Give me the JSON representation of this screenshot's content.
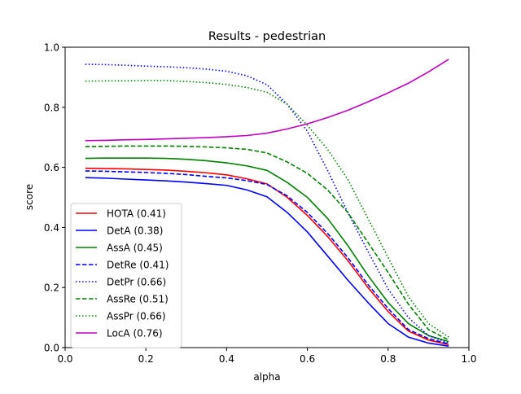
{
  "chart_data": {
    "type": "line",
    "title": "Results - pedestrian",
    "xlabel": "alpha",
    "ylabel": "score",
    "xlim": [
      0.0,
      1.0
    ],
    "ylim": [
      0.0,
      1.0
    ],
    "xticks": [
      "0.0",
      "0.2",
      "0.4",
      "0.6",
      "0.8",
      "1.0"
    ],
    "yticks": [
      "0.0",
      "0.2",
      "0.4",
      "0.6",
      "0.8",
      "1.0"
    ],
    "grid": false,
    "legend_position": "lower-left",
    "x": [
      0.05,
      0.1,
      0.15,
      0.2,
      0.25,
      0.3,
      0.35,
      0.4,
      0.45,
      0.5,
      0.55,
      0.6,
      0.65,
      0.7,
      0.75,
      0.8,
      0.85,
      0.9,
      0.95
    ],
    "series": [
      {
        "name": "HOTA (0.41)",
        "color": "#ff0000",
        "style": "solid",
        "values": [
          0.597,
          0.596,
          0.595,
          0.593,
          0.591,
          0.587,
          0.582,
          0.575,
          0.562,
          0.545,
          0.5,
          0.44,
          0.37,
          0.29,
          0.2,
          0.12,
          0.055,
          0.025,
          0.01
        ]
      },
      {
        "name": "DetA (0.38)",
        "color": "#0000ff",
        "style": "solid",
        "values": [
          0.566,
          0.564,
          0.561,
          0.558,
          0.555,
          0.551,
          0.546,
          0.54,
          0.525,
          0.502,
          0.45,
          0.385,
          0.305,
          0.225,
          0.15,
          0.08,
          0.035,
          0.015,
          0.005
        ]
      },
      {
        "name": "AssA (0.45)",
        "color": "#008000",
        "style": "solid",
        "values": [
          0.63,
          0.631,
          0.631,
          0.631,
          0.63,
          0.627,
          0.622,
          0.615,
          0.605,
          0.59,
          0.55,
          0.5,
          0.43,
          0.34,
          0.24,
          0.15,
          0.08,
          0.04,
          0.02
        ]
      },
      {
        "name": "DetRe (0.41)",
        "color": "#0000ff",
        "style": "dashed",
        "values": [
          0.588,
          0.587,
          0.585,
          0.583,
          0.58,
          0.576,
          0.57,
          0.565,
          0.556,
          0.543,
          0.505,
          0.45,
          0.38,
          0.3,
          0.21,
          0.13,
          0.06,
          0.03,
          0.012
        ]
      },
      {
        "name": "DetPr (0.66)",
        "color": "#0000ff",
        "style": "dotted",
        "values": [
          0.943,
          0.942,
          0.94,
          0.937,
          0.935,
          0.932,
          0.927,
          0.92,
          0.905,
          0.875,
          0.81,
          0.72,
          0.59,
          0.45,
          0.32,
          0.195,
          0.1,
          0.04,
          0.015
        ]
      },
      {
        "name": "AssRe (0.51)",
        "color": "#008000",
        "style": "dashed",
        "values": [
          0.669,
          0.67,
          0.671,
          0.671,
          0.671,
          0.67,
          0.668,
          0.665,
          0.66,
          0.648,
          0.618,
          0.58,
          0.525,
          0.45,
          0.35,
          0.25,
          0.145,
          0.06,
          0.025
        ]
      },
      {
        "name": "AssPr (0.66)",
        "color": "#008000",
        "style": "dotted",
        "values": [
          0.887,
          0.888,
          0.888,
          0.889,
          0.889,
          0.886,
          0.882,
          0.876,
          0.866,
          0.85,
          0.81,
          0.74,
          0.66,
          0.56,
          0.43,
          0.3,
          0.17,
          0.08,
          0.035
        ]
      },
      {
        "name": "LocA (0.76)",
        "color": "#bf00bf",
        "style": "solid",
        "values": [
          0.689,
          0.69,
          0.692,
          0.693,
          0.695,
          0.697,
          0.699,
          0.702,
          0.706,
          0.714,
          0.728,
          0.745,
          0.766,
          0.79,
          0.818,
          0.848,
          0.88,
          0.918,
          0.96
        ]
      }
    ]
  }
}
